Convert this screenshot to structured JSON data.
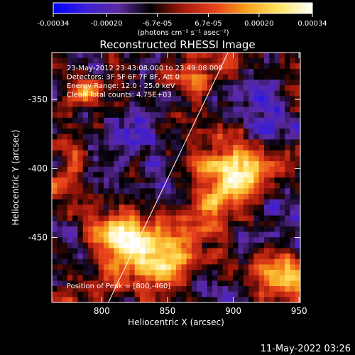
{
  "colorbar": {
    "tick_labels": [
      "-0.00034",
      "-0.00020",
      "-6.7e-05",
      "6.7e-05",
      "0.00020",
      "0.00034"
    ],
    "tick_values": [
      -0.00034,
      -0.0002,
      -6.7e-05,
      6.7e-05,
      0.0002,
      0.00034
    ],
    "range": [
      -0.00034,
      0.00034
    ],
    "units": "(photons cm⁻² s⁻¹ asec⁻²)",
    "colors": [
      "#0000ff",
      "#3b1dd6",
      "#5d2aa0",
      "#000000",
      "#a6190d",
      "#e8431b",
      "#f7a41e",
      "#ffe566",
      "#ffffff"
    ]
  },
  "chart_data": {
    "type": "heatmap",
    "title": "Reconstructed RHESSI Image",
    "xlabel": "Heliocentric X (arcsec)",
    "ylabel": "Heliocentric Y (arcsec)",
    "xlim": [
      762,
      951
    ],
    "ylim": [
      -497,
      -316
    ],
    "x_ticks": [
      800,
      850,
      900,
      950
    ],
    "x_tick_labels": [
      "800",
      "850",
      "900",
      "950"
    ],
    "y_ticks": [
      -350,
      -400,
      -450
    ],
    "y_tick_labels": [
      "-350",
      "-400",
      "-450"
    ],
    "grid": false,
    "grid_size": [
      48,
      46
    ],
    "colormap": "blue-purple-black-red-yellow-white",
    "blobs": [
      {
        "x": 838,
        "y": -462,
        "sx": 24,
        "sy": 16,
        "amp": 0.9
      },
      {
        "x": 810,
        "y": -448,
        "sx": 11,
        "sy": 9,
        "amp": 0.75
      },
      {
        "x": 900,
        "y": -402,
        "sx": 22,
        "sy": 13,
        "amp": 0.85
      },
      {
        "x": 885,
        "y": -425,
        "sx": 15,
        "sy": 10,
        "amp": 0.6
      },
      {
        "x": 935,
        "y": -478,
        "sx": 12,
        "sy": 12,
        "amp": 0.75
      },
      {
        "x": 868,
        "y": -338,
        "sx": 9,
        "sy": 8,
        "amp": 0.65
      },
      {
        "x": 898,
        "y": -322,
        "sx": 7,
        "sy": 6,
        "amp": 0.65
      },
      {
        "x": 790,
        "y": -345,
        "sx": 9,
        "sy": 10,
        "amp": 0.55
      },
      {
        "x": 775,
        "y": -405,
        "sx": 9,
        "sy": 14,
        "amp": 0.5
      },
      {
        "x": 925,
        "y": -360,
        "sx": 13,
        "sy": 14,
        "amp": -0.5
      },
      {
        "x": 820,
        "y": -380,
        "sx": 18,
        "sy": 13,
        "amp": -0.35
      },
      {
        "x": 850,
        "y": -410,
        "sx": 12,
        "sy": 10,
        "amp": -0.3
      },
      {
        "x": 880,
        "y": -490,
        "sx": 10,
        "sy": 8,
        "amp": -0.4
      },
      {
        "x": 935,
        "y": -430,
        "sx": 10,
        "sy": 9,
        "amp": -0.4
      }
    ],
    "track_line": {
      "from": [
        805,
        -497
      ],
      "to": [
        896,
        -316
      ]
    },
    "annotations": [
      "23-May-2012 23:43:08.000 to 23:49:08.000",
      "Detectors: 3F 5F 6F 7F 8F, Att 0",
      "Energy Range: 12.0 - 25.0 keV",
      "Clean     Total counts: 4.75E+03",
      "Position of Peak = [800,-460]"
    ]
  },
  "footer": {
    "date_stamp": "11-May-2022 03:26"
  }
}
